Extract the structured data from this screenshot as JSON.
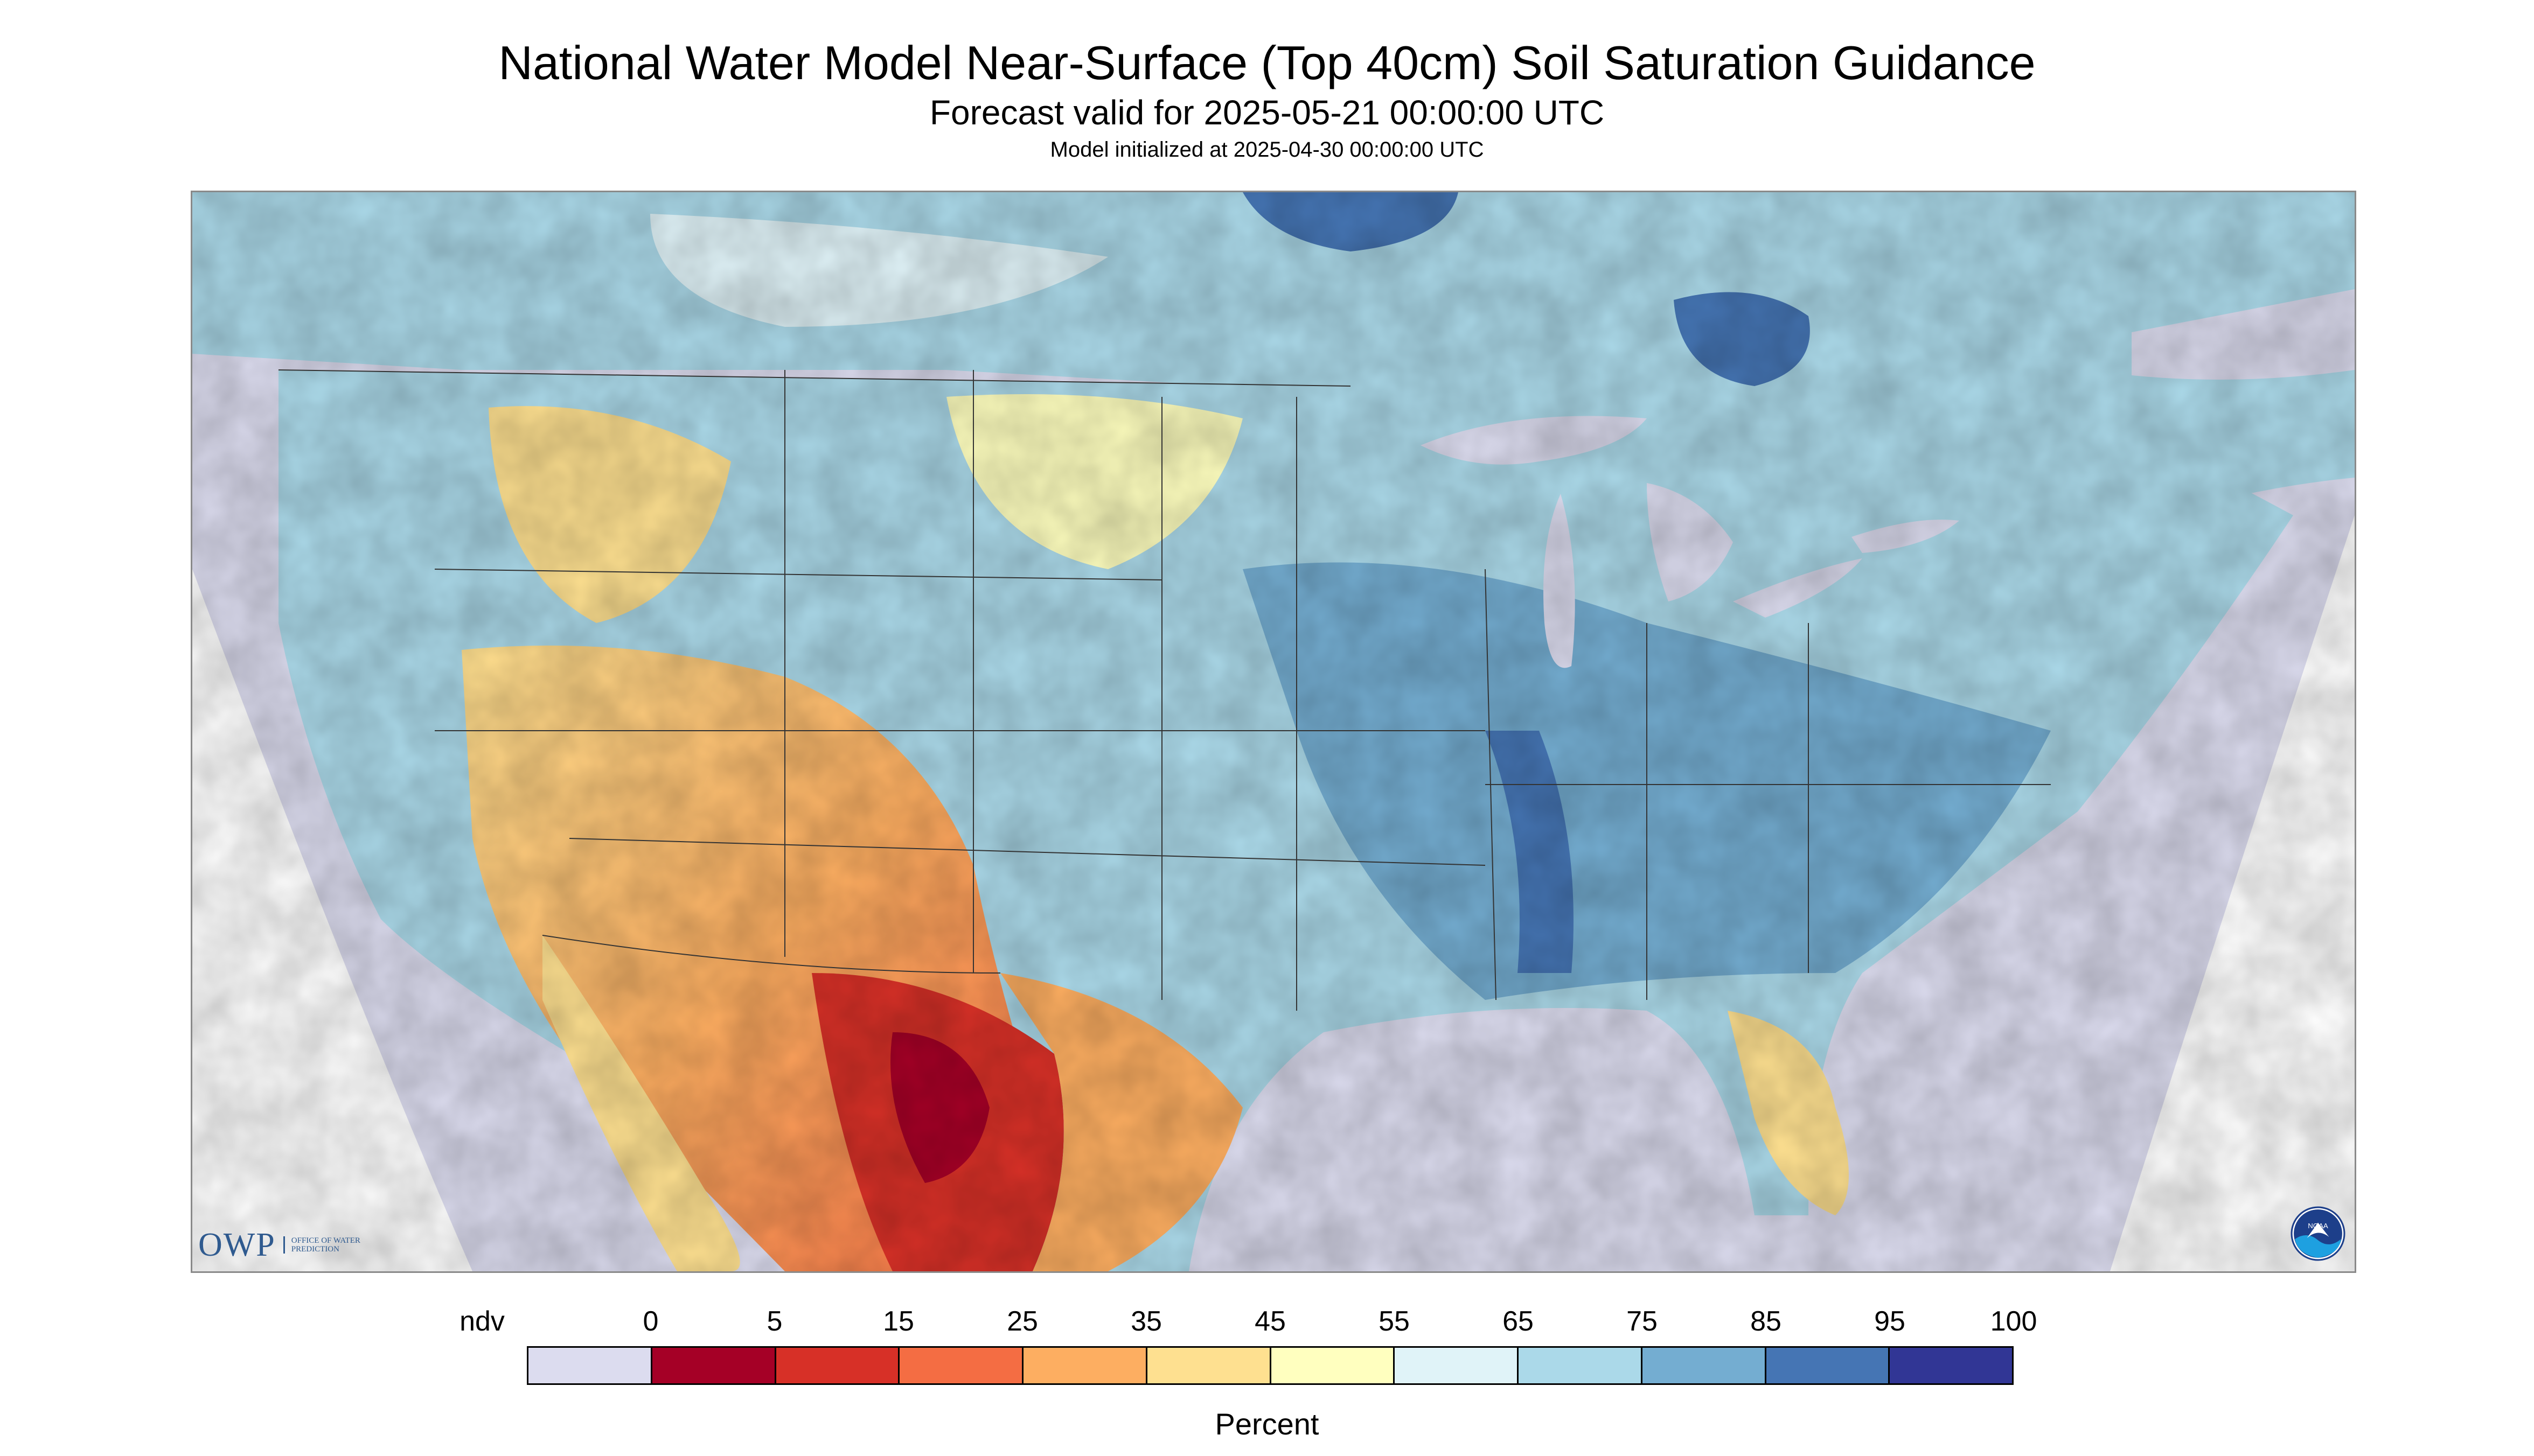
{
  "title": "National Water Model Near-Surface (Top 40cm) Soil Saturation Guidance",
  "subtitle": "Forecast valid for 2025-05-21 00:00:00 UTC",
  "init_line": "Model initialized at 2025-04-30 00:00:00 UTC",
  "legend": {
    "unit_label": "Percent",
    "ticks": [
      "ndv",
      "0",
      "5",
      "15",
      "25",
      "35",
      "45",
      "55",
      "65",
      "75",
      "85",
      "95",
      "100"
    ],
    "colors": [
      "#dcdcef",
      "#a50026",
      "#d73027",
      "#f46d43",
      "#fdae61",
      "#fee090",
      "#ffffbf",
      "#e0f3f8",
      "#abd9e9",
      "#74add1",
      "#4575b4",
      "#313695"
    ]
  },
  "map": {
    "ndv_color": "#dcdcef",
    "water_color": "#dcdcef",
    "border_color": "#333333",
    "regions": [
      {
        "zone": "canada",
        "level": 65
      },
      {
        "zone": "us-east",
        "level": 75
      },
      {
        "zone": "southwest",
        "level": 30
      },
      {
        "zone": "west-texas-mexico",
        "level": 10
      },
      {
        "zone": "florida",
        "level": 40
      }
    ]
  },
  "logos": {
    "owp_text": "OWP",
    "owp_sub": "OFFICE OF WATER PREDICTION",
    "noaa_text": "NOAA"
  }
}
